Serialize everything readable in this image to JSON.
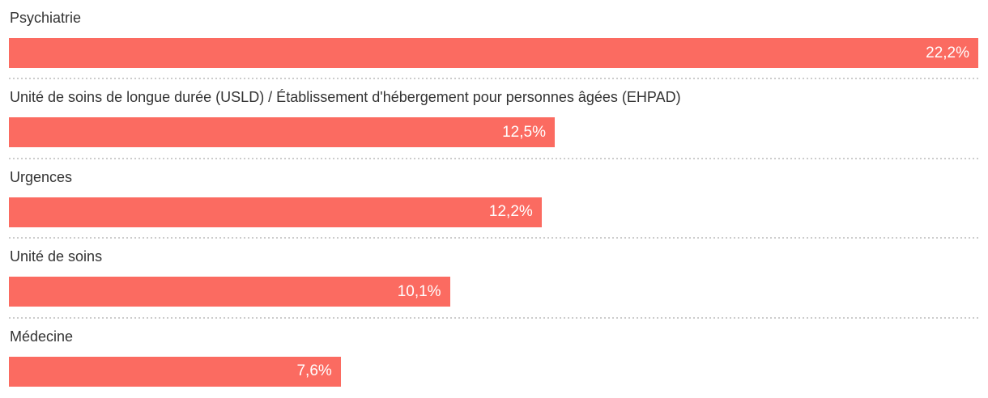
{
  "chart_data": {
    "type": "bar",
    "orientation": "horizontal",
    "categories": [
      "Psychiatrie",
      "Unité de soins de longue durée (USLD) / Établissement d'hébergement pour personnes âgées (EHPAD)",
      "Urgences",
      "Unité de soins",
      "Médecine"
    ],
    "values": [
      22.2,
      12.5,
      12.2,
      10.1,
      7.6
    ],
    "value_labels": [
      "22,2%",
      "12,5%",
      "12,2%",
      "10,1%",
      "7,6%"
    ],
    "unit": "%",
    "xlim": [
      0,
      22.2
    ],
    "title": "",
    "xlabel": "",
    "ylabel": "",
    "grid": false,
    "legend": false,
    "bar_scaling": "widths proportional to value, max value fills full width"
  },
  "colors": {
    "bar": "#fb6b61",
    "label_text": "#333333",
    "value_text": "#ffffff",
    "separator": "#cccccc",
    "background": "#ffffff"
  }
}
